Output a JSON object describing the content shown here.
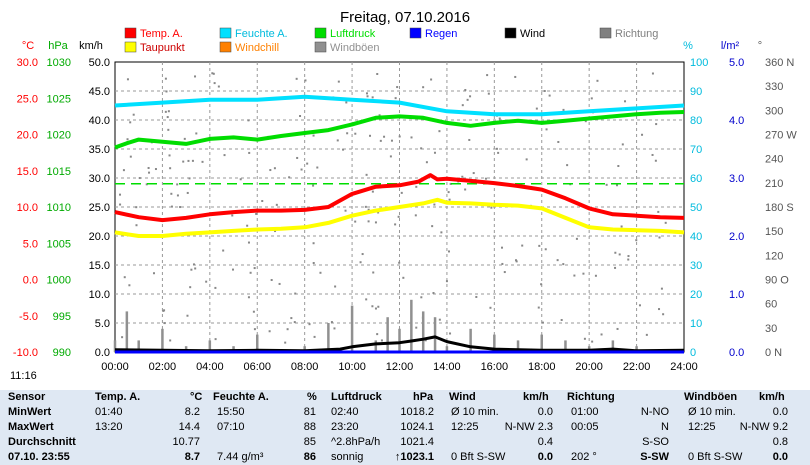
{
  "chart_data": {
    "type": "line",
    "title": "Freitag, 07.10.2016",
    "x_ticks": [
      "00:00",
      "02:00",
      "04:00",
      "06:00",
      "08:00",
      "10:00",
      "12:00",
      "14:00",
      "16:00",
      "18:00",
      "20:00",
      "22:00",
      "24:00"
    ],
    "axes": {
      "temp_c": {
        "label": "°C",
        "ticks": [
          "30.0",
          "25.0",
          "20.0",
          "15.0",
          "10.0",
          "5.0",
          "0.0",
          "-5.0",
          "-10.0"
        ],
        "range": [
          -10,
          30
        ]
      },
      "hpa": {
        "label": "hPa",
        "ticks": [
          "1030",
          "1025",
          "1020",
          "1015",
          "1010",
          "1005",
          "1000",
          "995",
          "990"
        ],
        "range": [
          990,
          1030
        ]
      },
      "kmh": {
        "label": "km/h",
        "ticks": [
          "50.0",
          "45.0",
          "40.0",
          "35.0",
          "30.0",
          "25.0",
          "20.0",
          "15.0",
          "10.0",
          "5.0",
          "0.0"
        ],
        "range": [
          0,
          50
        ]
      },
      "percent": {
        "label": "%",
        "ticks": [
          "100",
          "90",
          "80",
          "70",
          "60",
          "50",
          "40",
          "30",
          "20",
          "10",
          "0"
        ],
        "range": [
          0,
          100
        ]
      },
      "rain": {
        "label": "l/m²",
        "ticks": [
          "5.0",
          "4.0",
          "3.0",
          "2.0",
          "1.0",
          "0.0"
        ],
        "range": [
          0,
          5
        ]
      },
      "direction": {
        "label": "°",
        "ticks": [
          "360 N",
          "330",
          "300",
          "270 W",
          "240",
          "210",
          "180 S",
          "150",
          "120",
          "90 O",
          "60",
          "30",
          "0 N"
        ],
        "range": [
          0,
          360
        ]
      }
    },
    "legend": [
      {
        "name": "Temp. A.",
        "color": "#ff0000"
      },
      {
        "name": "Feuchte A.",
        "color": "#00e0ff"
      },
      {
        "name": "Luftdruck",
        "color": "#00dd00"
      },
      {
        "name": "Regen",
        "color": "#0000ff"
      },
      {
        "name": "Wind",
        "color": "#000000"
      },
      {
        "name": "Richtung",
        "color": "#808080"
      },
      {
        "name": "Taupunkt",
        "color": "#ffff00"
      },
      {
        "name": "Windchill",
        "color": "#ff8000"
      },
      {
        "name": "Windböen",
        "color": "#909090"
      }
    ],
    "series": [
      {
        "name": "Temp. A.",
        "axis": "temp_c",
        "color": "#ff0000",
        "x": [
          0,
          1,
          2,
          3,
          4,
          5,
          6,
          7,
          8,
          9,
          10,
          11,
          12,
          12.8,
          13.3,
          13.6,
          14,
          15,
          16,
          17,
          18,
          19,
          20,
          21,
          22,
          23,
          24
        ],
        "y": [
          9.3,
          8.6,
          8.2,
          8.5,
          9.0,
          9.3,
          9.5,
          9.5,
          9.6,
          10.0,
          11.8,
          12.8,
          13.0,
          13.5,
          14.4,
          13.8,
          13.9,
          13.6,
          13.3,
          12.9,
          12.4,
          11.2,
          9.8,
          9.0,
          8.8,
          8.6,
          8.5
        ]
      },
      {
        "name": "Taupunkt",
        "axis": "temp_c",
        "color": "#ffff00",
        "x": [
          0,
          1,
          2,
          3,
          4,
          5,
          6,
          7,
          8,
          9,
          10,
          11,
          12,
          13,
          13.6,
          14,
          15,
          16,
          17,
          18,
          19,
          20,
          21,
          22,
          23,
          24
        ],
        "y": [
          6.5,
          6.0,
          6.0,
          6.3,
          6.5,
          6.7,
          6.9,
          7.0,
          7.2,
          7.8,
          8.8,
          9.5,
          10.0,
          10.5,
          11.0,
          10.6,
          10.5,
          10.3,
          10.2,
          9.8,
          8.5,
          7.2,
          6.9,
          6.8,
          6.7,
          6.5
        ]
      },
      {
        "name": "Feuchte A.",
        "axis": "percent",
        "color": "#00e0ff",
        "x": [
          0,
          2,
          4,
          6,
          8,
          10,
          12,
          14,
          16,
          18,
          20,
          22,
          24
        ],
        "y": [
          85,
          86,
          87,
          87,
          88,
          87,
          86,
          83,
          82,
          82,
          83,
          84,
          85
        ]
      },
      {
        "name": "Luftdruck",
        "axis": "hpa",
        "color": "#00dd00",
        "x": [
          0,
          0.5,
          1,
          2,
          3,
          4,
          5,
          6,
          7,
          8,
          9,
          10,
          11,
          12,
          13,
          14,
          15,
          16,
          17,
          18,
          19,
          20,
          21,
          22,
          23,
          24
        ],
        "y": [
          1018.2,
          1018.8,
          1019.3,
          1019.0,
          1018.7,
          1019.4,
          1019.6,
          1019.3,
          1019.8,
          1020.2,
          1020.6,
          1021.4,
          1022.3,
          1022.5,
          1022.3,
          1021.6,
          1021.2,
          1021.6,
          1021.9,
          1021.6,
          1021.9,
          1022.2,
          1022.5,
          1022.8,
          1023.0,
          1023.1
        ]
      },
      {
        "name": "Wind",
        "axis": "kmh",
        "color": "#000000",
        "x": [
          0,
          2,
          4,
          6,
          8,
          9.5,
          10,
          11,
          12,
          12.5,
          13,
          13.5,
          14,
          15,
          16,
          18,
          20,
          21,
          22,
          24
        ],
        "y": [
          0.4,
          0.3,
          0.2,
          0.3,
          0.2,
          0.5,
          0.9,
          1.4,
          1.6,
          1.9,
          2.2,
          2.6,
          1.8,
          0.9,
          0.5,
          0.3,
          0.3,
          0.5,
          0.2,
          0.3
        ]
      },
      {
        "name": "Windböen",
        "axis": "kmh",
        "color": "#909090",
        "x": [
          0,
          0.5,
          1,
          2,
          3,
          4,
          5,
          6,
          7,
          8,
          9,
          10,
          11,
          11.5,
          12,
          12.5,
          13,
          13.5,
          14,
          15,
          16,
          17,
          18,
          19,
          20,
          21,
          22,
          23,
          24
        ],
        "y": [
          2,
          7,
          2,
          4,
          1,
          2,
          1,
          3,
          0,
          1,
          5,
          8,
          2,
          6,
          4,
          9,
          7,
          6,
          1,
          4,
          3,
          2,
          3,
          2,
          1,
          2,
          1,
          0,
          0
        ]
      },
      {
        "name": "Regen",
        "axis": "rain",
        "color": "#0000ff",
        "x": [
          0,
          24
        ],
        "y": [
          0.0,
          0.0
        ]
      }
    ],
    "reference_line": {
      "axis": "percent",
      "value": 58,
      "color": "#00dd00"
    }
  },
  "clock": "11:16",
  "table": {
    "headers": {
      "sensor": "Sensor",
      "temp": "Temp. A.",
      "temp_unit": "°C",
      "humidity": "Feuchte A.",
      "humidity_unit": "%",
      "pressure": "Luftdruck",
      "pressure_unit": "hPa",
      "wind": "Wind",
      "wind_unit": "km/h",
      "direction": "Richtung",
      "gusts": "Windböen",
      "gusts_unit": "km/h"
    },
    "rows": [
      {
        "label": "MinWert",
        "temp_time": "01:40",
        "temp_val": "8.2",
        "hum_time": "15:50",
        "hum_val": "81",
        "pres_time": "02:40",
        "pres_val": "1018.2",
        "wind_time": "Ø 10 min.",
        "wind_val": "0.0",
        "dir_time": "01:00",
        "dir_val": "N-NO",
        "gust_time": "Ø 10 min.",
        "gust_val": "0.0"
      },
      {
        "label": "MaxWert",
        "temp_time": "13:20",
        "temp_val": "14.4",
        "hum_time": "07:10",
        "hum_val": "88",
        "pres_time": "23:20",
        "pres_val": "1024.1",
        "wind_time": "12:25",
        "wind_val": "N-NW 2.3",
        "dir_time": "00:05",
        "dir_val": "N",
        "gust_time": "12:25",
        "gust_val": "N-NW 9.2"
      },
      {
        "label": "Durchschnitt",
        "temp_time": "",
        "temp_val": "10.77",
        "hum_time": "",
        "hum_val": "85",
        "pres_time": "^2.8hPa/h",
        "pres_val": "1021.4",
        "wind_time": "",
        "wind_val": "0.4",
        "dir_time": "",
        "dir_val": "S-SO",
        "gust_time": "",
        "gust_val": "0.8"
      },
      {
        "label": "07.10. 23:55",
        "temp_time": "",
        "temp_val": "8.7",
        "hum_time": "7.44 g/m³",
        "hum_val": "86",
        "pres_time": "sonnig",
        "pres_val": "↑1023.1",
        "wind_time": "0 Bft S-SW",
        "wind_val": "0.0",
        "dir_time": "202 °",
        "dir_val": "S-SW",
        "gust_time": "0 Bft S-SW",
        "gust_val": "0.0"
      }
    ]
  }
}
